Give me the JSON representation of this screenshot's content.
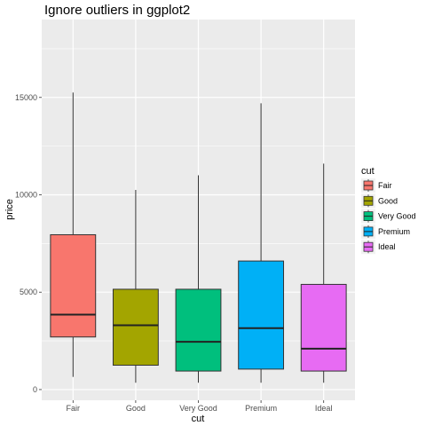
{
  "chart_data": {
    "type": "boxplot",
    "title": "Ignore outliers in ggplot2",
    "xlabel": "cut",
    "ylabel": "price",
    "ylim": [
      -550,
      19000
    ],
    "yticks": [
      0,
      5000,
      10000,
      15000
    ],
    "ytick_labels": [
      "0",
      "5000",
      "10000",
      "15000"
    ],
    "grid": true,
    "categories": [
      "Fair",
      "Good",
      "Very Good",
      "Premium",
      "Ideal"
    ],
    "boxes": [
      {
        "name": "Fair",
        "lower_whisker": 650,
        "q1": 2700,
        "median": 3850,
        "q3": 7950,
        "upper_whisker": 15250
      },
      {
        "name": "Good",
        "lower_whisker": 350,
        "q1": 1250,
        "median": 3300,
        "q3": 5150,
        "upper_whisker": 10250
      },
      {
        "name": "Very Good",
        "lower_whisker": 350,
        "q1": 950,
        "median": 2450,
        "q3": 5150,
        "upper_whisker": 11000
      },
      {
        "name": "Premium",
        "lower_whisker": 350,
        "q1": 1050,
        "median": 3150,
        "q3": 6600,
        "upper_whisker": 14700
      },
      {
        "name": "Ideal",
        "lower_whisker": 350,
        "q1": 950,
        "median": 2100,
        "q3": 5400,
        "upper_whisker": 11600
      }
    ],
    "legend": {
      "title": "cut",
      "placement": "right",
      "items": [
        "Fair",
        "Good",
        "Very Good",
        "Premium",
        "Ideal"
      ]
    },
    "colors": {
      "Fair": "#F8766D",
      "Good": "#A3A500",
      "Very Good": "#00BF7D",
      "Premium": "#00B0F6",
      "Ideal": "#E76BF3",
      "panel_background": "#EBEBEB",
      "grid_line": "#FFFFFF"
    }
  }
}
